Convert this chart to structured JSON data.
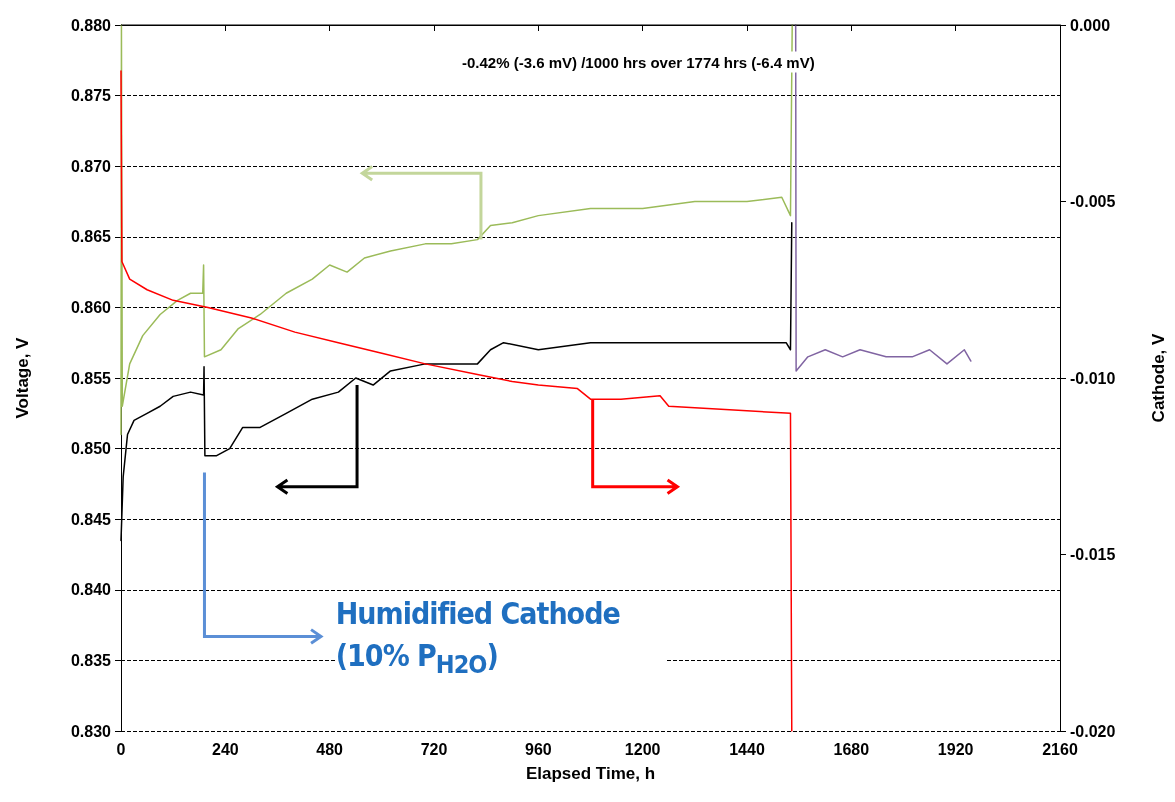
{
  "chart_data": {
    "type": "line",
    "xlabel": "Elapsed Time, h",
    "ylabel": "Voltage, V",
    "y2label": "Cathode, V",
    "annotations": [
      "-0.42% (-3.6 mV) /1000 hrs over 1774 hrs (-6.4 mV)",
      "Humidified Cathode (10% P$_{H2O}$)"
    ],
    "xlim": [
      0,
      2160
    ],
    "xticks": [
      0,
      240,
      480,
      720,
      960,
      1200,
      1440,
      1680,
      1920,
      2160
    ],
    "ylim": [
      0.83,
      0.88
    ],
    "yticks": [
      {
        "value": 0.83,
        "label": "0.830"
      },
      {
        "value": 0.835,
        "label": "0.835"
      },
      {
        "value": 0.84,
        "label": "0.840"
      },
      {
        "value": 0.845,
        "label": "0.845"
      },
      {
        "value": 0.85,
        "label": "0.850"
      },
      {
        "value": 0.855,
        "label": "0.855"
      },
      {
        "value": 0.86,
        "label": "0.860"
      },
      {
        "value": 0.865,
        "label": "0.865"
      },
      {
        "value": 0.87,
        "label": "0.870"
      },
      {
        "value": 0.875,
        "label": "0.875"
      },
      {
        "value": 0.88,
        "label": "0.880"
      }
    ],
    "y2lim": [
      -0.02,
      0
    ],
    "y2ticks": [
      {
        "value": -0.02,
        "label": "-0.020"
      },
      {
        "value": -0.015,
        "label": "-0.015"
      },
      {
        "value": -0.01,
        "label": "-0.010"
      },
      {
        "value": -0.005,
        "label": "-0.005"
      },
      {
        "value": 0,
        "label": "0.000"
      }
    ],
    "grid": "y",
    "marker": "none",
    "line_style": "solid",
    "series": [
      {
        "color": "#000000",
        "x": [
          0,
          5,
          15,
          30,
          60,
          90,
          120,
          160,
          190,
          191,
          193,
          220,
          250,
          280,
          320,
          380,
          440,
          500,
          540,
          580,
          620,
          700,
          760,
          820,
          850,
          880,
          960,
          1080,
          1200,
          1320,
          1440,
          1530,
          1540,
          1543
        ],
        "values": [
          0.8435,
          0.848,
          0.851,
          0.852,
          0.8525,
          0.853,
          0.8537,
          0.854,
          0.8538,
          0.8558,
          0.8495,
          0.8495,
          0.85,
          0.8515,
          0.8515,
          0.8525,
          0.8535,
          0.854,
          0.855,
          0.8545,
          0.8555,
          0.856,
          0.856,
          0.856,
          0.857,
          0.8575,
          0.857,
          0.8575,
          0.8575,
          0.8575,
          0.8575,
          0.8575,
          0.857,
          0.866
        ]
      },
      {
        "color": "#9bbb59",
        "x": [
          0,
          1,
          3,
          20,
          50,
          90,
          130,
          160,
          188,
          190,
          192,
          230,
          270,
          320,
          380,
          440,
          480,
          520,
          560,
          620,
          700,
          760,
          820,
          850,
          900,
          960,
          1080,
          1200,
          1320,
          1440,
          1520,
          1540,
          1544
        ],
        "values": [
          0.851,
          0.88,
          0.853,
          0.856,
          0.858,
          0.8595,
          0.8605,
          0.861,
          0.861,
          0.863,
          0.8565,
          0.857,
          0.8585,
          0.8595,
          0.861,
          0.862,
          0.863,
          0.8625,
          0.8635,
          0.864,
          0.8645,
          0.8645,
          0.8648,
          0.8658,
          0.866,
          0.8665,
          0.867,
          0.867,
          0.8675,
          0.8675,
          0.8678,
          0.8665,
          0.88
        ]
      },
      {
        "color": "#ff0000",
        "axis": "y2",
        "x": [
          0,
          2,
          20,
          60,
          120,
          200,
          300,
          400,
          500,
          600,
          700,
          820,
          900,
          960,
          1050,
          1080,
          1150,
          1240,
          1260,
          1400,
          1540,
          1543
        ],
        "values": [
          -0.0013,
          -0.0067,
          -0.0072,
          -0.0075,
          -0.0078,
          -0.008,
          -0.0083,
          -0.0087,
          -0.009,
          -0.0093,
          -0.0096,
          -0.0099,
          -0.0101,
          -0.0102,
          -0.0103,
          -0.0106,
          -0.0106,
          -0.0105,
          -0.0108,
          -0.0109,
          -0.011,
          -0.02
        ]
      },
      {
        "color": "#8064a2",
        "x": [
          1552,
          1553,
          1580,
          1620,
          1660,
          1700,
          1760,
          1820,
          1860,
          1900,
          1940,
          1955
        ],
        "values": [
          0.88,
          0.8555,
          0.8565,
          0.857,
          0.8565,
          0.857,
          0.8565,
          0.8565,
          0.857,
          0.856,
          0.857,
          0.8562
        ]
      }
    ]
  }
}
